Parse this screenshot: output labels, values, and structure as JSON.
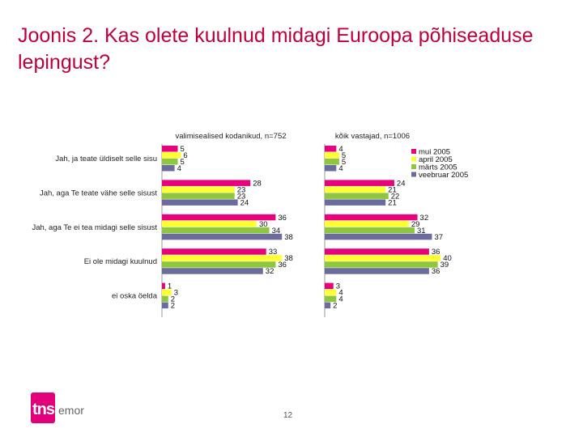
{
  "title": "Joonis 2. Kas olete kuulnud midagi Euroopa põhiseaduse lepingust?",
  "page_number": "12",
  "logo": {
    "main": "tns",
    "sub": "emor"
  },
  "colors": {
    "title": "#c1003a",
    "mui_2005": "#e8007d",
    "aprill_2005": "#ffff33",
    "marts_2005": "#8ec63f",
    "veebruar_2005": "#6b6b9d"
  },
  "chart_data": {
    "type": "bar",
    "orientation": "horizontal",
    "categories": [
      "Jah, ja teate üldiselt selle sisu",
      "Jah, aga Te teate vähe selle sisust",
      "Jah, aga Te ei tea midagi selle sisust",
      "Ei ole midagi kuulnud",
      "ei oska öelda"
    ],
    "legend": {
      "position": "right",
      "entries": [
        "mui 2005",
        "april 2005",
        "märts 2005",
        "veebruar 2005"
      ]
    },
    "panels": [
      {
        "title": "valimisealised kodanikud, n=752",
        "series": [
          {
            "name": "mui 2005",
            "color": "#e8007d",
            "values": [
              5,
              28,
              36,
              33,
              1
            ]
          },
          {
            "name": "april 2005",
            "color": "#ffff33",
            "values": [
              6,
              23,
              30,
              38,
              3
            ]
          },
          {
            "name": "märts 2005",
            "color": "#8ec63f",
            "values": [
              5,
              23,
              34,
              36,
              2
            ]
          },
          {
            "name": "veebruar 2005",
            "color": "#6b6b9d",
            "values": [
              4,
              24,
              38,
              32,
              2
            ]
          }
        ]
      },
      {
        "title": "kõik vastajad, n=1006",
        "series": [
          {
            "name": "mui 2005",
            "color": "#e8007d",
            "values": [
              4,
              24,
              32,
              36,
              3
            ]
          },
          {
            "name": "april 2005",
            "color": "#ffff33",
            "values": [
              5,
              21,
              29,
              40,
              4
            ]
          },
          {
            "name": "märts 2005",
            "color": "#8ec63f",
            "values": [
              5,
              22,
              31,
              39,
              4
            ]
          },
          {
            "name": "veebruar 2005",
            "color": "#6b6b9d",
            "values": [
              4,
              21,
              37,
              36,
              2
            ]
          }
        ]
      }
    ],
    "xlim": [
      0,
      45
    ]
  }
}
